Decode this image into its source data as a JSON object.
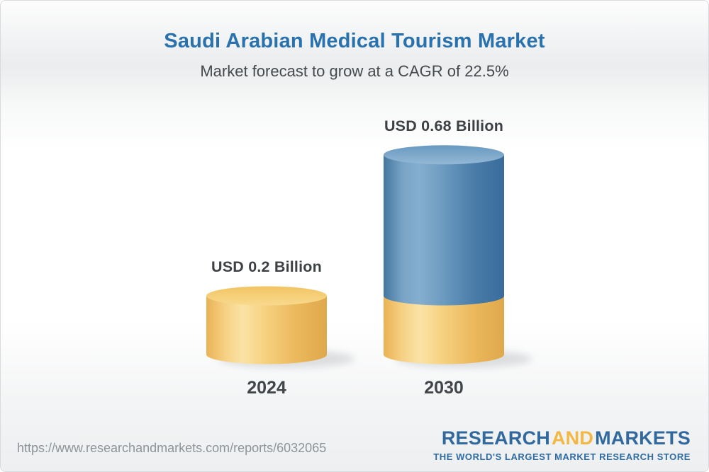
{
  "header": {
    "title": "Saudi Arabian Medical Tourism Market",
    "subtitle": "Market forecast to grow at a CAGR of 22.5%"
  },
  "chart_data": {
    "type": "bar",
    "variant": "3d-cylinder",
    "title": "Saudi Arabian Medical Tourism Market",
    "subtitle": "Market forecast to grow at a CAGR of 22.5%",
    "cagr_percent": 22.5,
    "unit": "USD Billion",
    "categories": [
      "2024",
      "2030"
    ],
    "values": [
      0.2,
      0.68
    ],
    "value_labels": [
      "USD 0.2 Billion",
      "USD 0.68 Billion"
    ],
    "bar_segments": [
      [
        {
          "value": 0.2,
          "color_key": "base"
        }
      ],
      [
        {
          "value": 0.2,
          "color_key": "base"
        },
        {
          "value": 0.48,
          "color_key": "forecast"
        }
      ]
    ],
    "xlabel": "",
    "ylabel": "",
    "ylim": [
      0,
      0.75
    ],
    "grid": false,
    "legend": false,
    "colors": {
      "base": "#F2C567",
      "forecast": "#5E90B8",
      "label_text": "#3D4145",
      "title_blue": "#2A72AD"
    },
    "style": {
      "body_gradient_base": [
        [
          0,
          "#EAB255"
        ],
        [
          0.16,
          "#F6D185"
        ],
        [
          0.3,
          "#FBE3A6"
        ],
        [
          0.5,
          "#F6D07E"
        ],
        [
          0.75,
          "#EBB85C"
        ],
        [
          1,
          "#DFA84B"
        ]
      ],
      "body_gradient_forecast": [
        [
          0,
          "#44769F"
        ],
        [
          0.16,
          "#79A4C7"
        ],
        [
          0.3,
          "#86AECE"
        ],
        [
          0.5,
          "#6B9ABF"
        ],
        [
          0.75,
          "#4A7CA8"
        ],
        [
          1,
          "#396C9C"
        ]
      ],
      "top_gradient_base": [
        [
          0,
          "#F1C463"
        ],
        [
          1,
          "#F9D98E"
        ]
      ],
      "top_gradient_forecast": [
        [
          0,
          "#6899C0"
        ],
        [
          1,
          "#93B8D5"
        ]
      ],
      "shadow_color": "#8f969b"
    }
  },
  "footer": {
    "url": "https://www.researchandmarkets.com/reports/6032065",
    "logo_research": "RESEARCH",
    "logo_and": "AND",
    "logo_markets": "MARKETS",
    "logo_tagline": "THE WORLD'S LARGEST MARKET RESEARCH STORE"
  }
}
